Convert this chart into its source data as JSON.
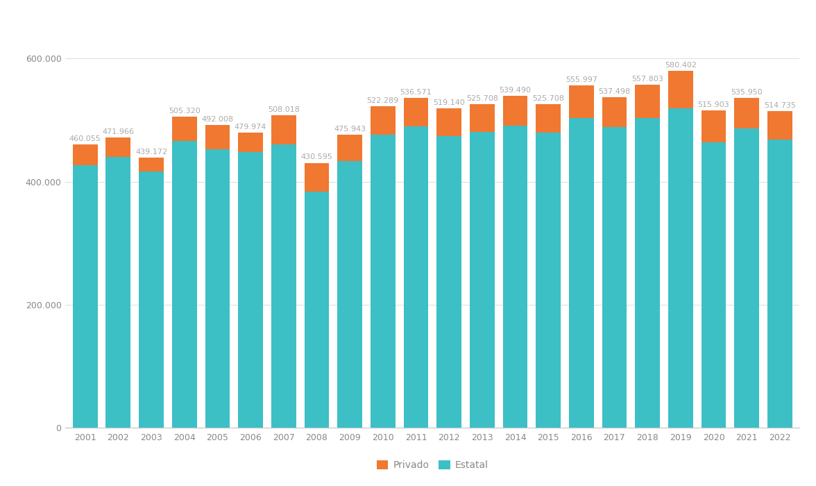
{
  "years": [
    2001,
    2002,
    2003,
    2004,
    2005,
    2006,
    2007,
    2008,
    2009,
    2010,
    2011,
    2012,
    2013,
    2014,
    2015,
    2016,
    2017,
    2018,
    2019,
    2020,
    2021,
    2022
  ],
  "totals": [
    460055,
    471966,
    439172,
    505320,
    492008,
    479974,
    508018,
    430595,
    475943,
    522289,
    536571,
    519140,
    525708,
    539490,
    525708,
    555997,
    537498,
    557803,
    580402,
    515903,
    535950,
    514735
  ],
  "estatal": [
    427000,
    440000,
    416000,
    466000,
    453000,
    448000,
    461000,
    384000,
    434000,
    476000,
    490000,
    474000,
    481000,
    491000,
    480000,
    503000,
    489000,
    503000,
    519000,
    464000,
    486000,
    468000
  ],
  "color_estatal": "#3dbfc6",
  "color_privado": "#f07830",
  "color_label": "#aaaaaa",
  "background_color": "#ffffff",
  "grid_color": "#e0e0e0",
  "axis_color": "#cccccc",
  "tick_color": "#888888",
  "ylim": [
    0,
    640000
  ],
  "yticks": [
    0,
    200000,
    400000,
    600000
  ],
  "legend_privado": "Privado",
  "legend_estatal": "Estatal",
  "bar_width": 0.75,
  "label_fontsize": 8,
  "tick_fontsize": 9
}
